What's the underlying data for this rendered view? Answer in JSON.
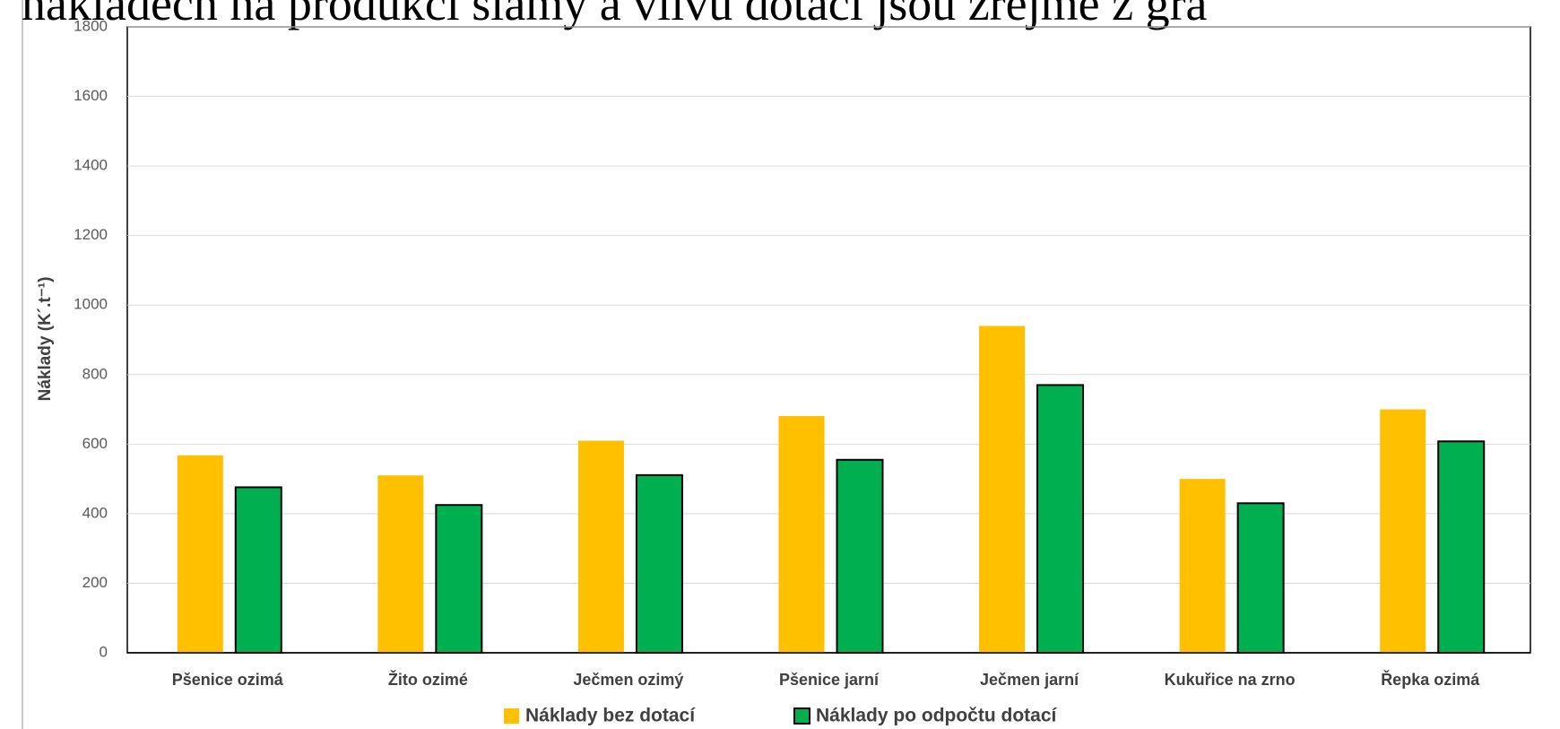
{
  "chart_data": {
    "type": "bar",
    "title": "nákladech na produkci slámy a vlivu dotací jsou zřejmé z gra",
    "y_label": "Náklady (K´.t⁻¹)",
    "categories": [
      "Pšenice ozimá",
      "Žito ozimé",
      "Ječmen ozimý",
      "Pšenice jarní",
      "Ječmen jarní",
      "Kukuřice na zrno",
      "Řepka ozimá"
    ],
    "series": [
      {
        "name": "Náklady bez dotací",
        "color": "#ffc000",
        "values": [
          568,
          510,
          610,
          681,
          940,
          500,
          700
        ]
      },
      {
        "name": "Náklady po odpočtu dotací",
        "color": "#00b050",
        "values": [
          476,
          425,
          511,
          555,
          770,
          430,
          608
        ]
      }
    ],
    "ylim": [
      0,
      1800
    ],
    "yticks": [
      0,
      200,
      400,
      600,
      800,
      1000,
      1200,
      1400,
      1600,
      1800
    ],
    "grid": true,
    "legend": "bottom"
  }
}
